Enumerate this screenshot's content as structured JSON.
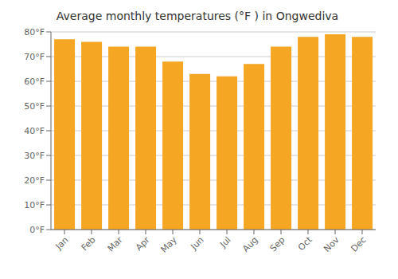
{
  "chart_data": {
    "type": "bar",
    "title": "Average monthly temperatures (°F ) in Ongwediva",
    "categories": [
      "Jan",
      "Feb",
      "Mar",
      "Apr",
      "May",
      "Jun",
      "Jul",
      "Aug",
      "Sep",
      "Oct",
      "Nov",
      "Dec"
    ],
    "values": [
      77,
      76,
      74,
      74,
      68,
      63,
      62,
      67,
      74,
      78,
      79,
      78
    ],
    "color": "#F5A623",
    "ylim": [
      0,
      80
    ],
    "yticks": [
      {
        "value": 0,
        "label": "0°F"
      },
      {
        "value": 10,
        "label": "10°F"
      },
      {
        "value": 20,
        "label": "20°F"
      },
      {
        "value": 30,
        "label": "30°F"
      },
      {
        "value": 40,
        "label": "40°F"
      },
      {
        "value": 50,
        "label": "50°F"
      },
      {
        "value": 60,
        "label": "60°F"
      },
      {
        "value": 70,
        "label": "70°F"
      },
      {
        "value": 80,
        "label": "80°F"
      }
    ],
    "grid": true
  }
}
